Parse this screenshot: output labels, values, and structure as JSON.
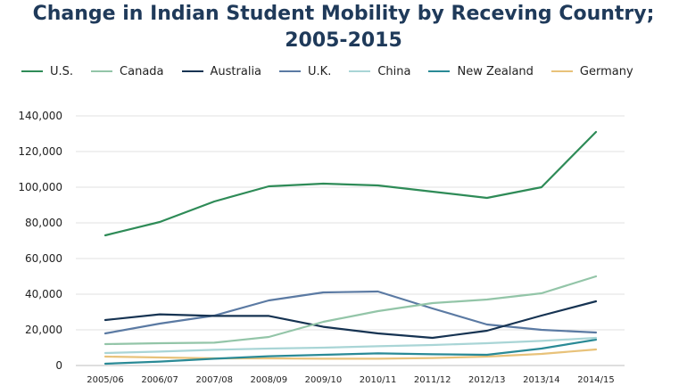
{
  "chart_data": {
    "type": "line",
    "title_line1": "Change in Indian Student Mobility by Receving Country;",
    "title_line2": "2005-2015",
    "categories": [
      "2005/06",
      "2006/07",
      "2007/08",
      "2008/09",
      "2009/10",
      "2010/11",
      "2011/12",
      "2012/13",
      "2013/14",
      "2014/15"
    ],
    "ylim": [
      0,
      140000
    ],
    "yticks": [
      0,
      20000,
      40000,
      60000,
      80000,
      100000,
      120000,
      140000
    ],
    "ytick_labels": [
      "0",
      "20,000",
      "40,000",
      "60,000",
      "80,000",
      "100,000",
      "120,000",
      "140,000"
    ],
    "grid": true,
    "legend_position": "top",
    "series": [
      {
        "name": "U.S.",
        "color": "#2e8b57",
        "values": [
          73000,
          80500,
          92000,
          100500,
          102000,
          101000,
          97500,
          94000,
          100000,
          131000
        ]
      },
      {
        "name": "Canada",
        "color": "#93c5a8",
        "values": [
          12000,
          12500,
          12800,
          16000,
          24500,
          30500,
          35000,
          37000,
          40500,
          50000
        ]
      },
      {
        "name": "Australia",
        "color": "#163352",
        "values": [
          25500,
          28700,
          27800,
          27800,
          21700,
          18000,
          15500,
          19500,
          28000,
          36000
        ]
      },
      {
        "name": "U.K.",
        "color": "#5b7aa3",
        "values": [
          18000,
          23500,
          28000,
          36500,
          41000,
          41500,
          32000,
          23000,
          20000,
          18500
        ]
      },
      {
        "name": "China",
        "color": "#a9d5d6",
        "values": [
          7000,
          7800,
          8800,
          9500,
          10000,
          10800,
          11500,
          12500,
          13800,
          15500
        ]
      },
      {
        "name": "New Zealand",
        "color": "#2a8a96",
        "values": [
          1000,
          2200,
          3800,
          5200,
          6000,
          6800,
          6300,
          6000,
          9500,
          14500
        ]
      },
      {
        "name": "Germany",
        "color": "#e8c27a",
        "values": [
          5000,
          4500,
          4000,
          4000,
          3800,
          3800,
          4200,
          5000,
          6500,
          9000
        ]
      }
    ]
  }
}
